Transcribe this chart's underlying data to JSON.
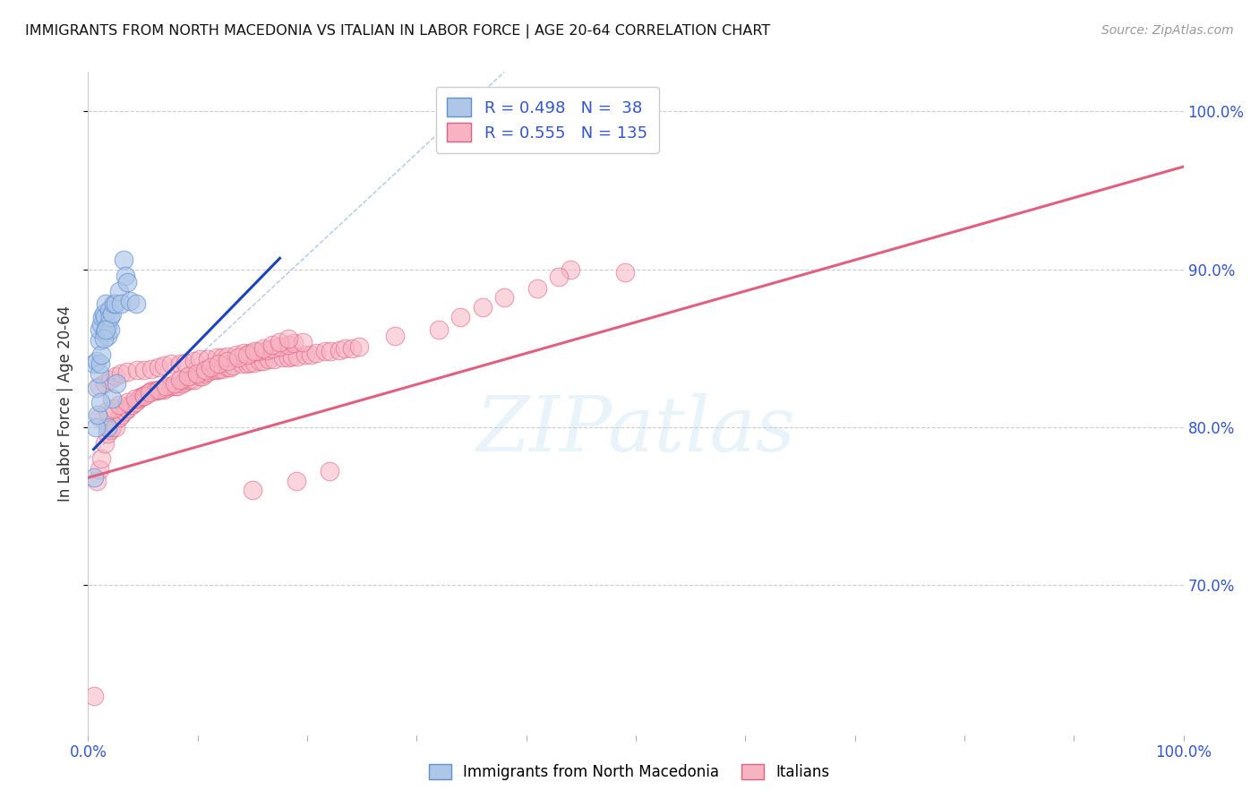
{
  "title": "IMMIGRANTS FROM NORTH MACEDONIA VS ITALIAN IN LABOR FORCE | AGE 20-64 CORRELATION CHART",
  "source": "Source: ZipAtlas.com",
  "ylabel": "In Labor Force | Age 20-64",
  "xlim": [
    0.0,
    1.0
  ],
  "ylim": [
    0.605,
    1.025
  ],
  "yticks_right": [
    0.7,
    0.8,
    0.9,
    1.0
  ],
  "yticklabels_right": [
    "70.0%",
    "80.0%",
    "90.0%",
    "100.0%"
  ],
  "blue_R": 0.498,
  "blue_N": 38,
  "pink_R": 0.555,
  "pink_N": 135,
  "blue_color": "#aec6e8",
  "pink_color": "#f7b3c2",
  "blue_edge_color": "#6090d0",
  "pink_edge_color": "#e06080",
  "blue_line_color": "#1a44bb",
  "pink_line_color": "#e06080",
  "ref_line_color": "#99bbdd",
  "legend_blue_label": "Immigrants from North Macedonia",
  "legend_pink_label": "Italians",
  "watermark": "ZIPatlas",
  "tick_label_color": "#3355cc",
  "background_color": "#ffffff",
  "grid_color": "#cccccc",
  "blue_line_x0": 0.005,
  "blue_line_y0": 0.786,
  "blue_line_x1": 0.175,
  "blue_line_y1": 0.907,
  "pink_line_x0": 0.0,
  "pink_line_y0": 0.768,
  "pink_line_x1": 1.0,
  "pink_line_y1": 0.965,
  "ref_line_x0": 0.0,
  "ref_line_y0": 0.78,
  "ref_line_x1": 0.38,
  "ref_line_y1": 1.025,
  "blue_x": [
    0.005,
    0.008,
    0.01,
    0.01,
    0.012,
    0.013,
    0.014,
    0.015,
    0.015,
    0.016,
    0.018,
    0.018,
    0.019,
    0.02,
    0.02,
    0.022,
    0.023,
    0.025,
    0.028,
    0.03,
    0.032,
    0.034,
    0.036,
    0.038,
    0.008,
    0.01,
    0.011,
    0.012,
    0.014,
    0.016,
    0.018,
    0.022,
    0.026,
    0.044,
    0.005,
    0.007,
    0.009,
    0.011
  ],
  "blue_y": [
    0.84,
    0.842,
    0.855,
    0.862,
    0.865,
    0.87,
    0.872,
    0.86,
    0.87,
    0.878,
    0.858,
    0.864,
    0.874,
    0.862,
    0.87,
    0.872,
    0.878,
    0.878,
    0.886,
    0.878,
    0.906,
    0.896,
    0.892,
    0.88,
    0.825,
    0.834,
    0.84,
    0.846,
    0.856,
    0.862,
    0.8,
    0.818,
    0.828,
    0.878,
    0.768,
    0.8,
    0.808,
    0.816
  ],
  "pink_x": [
    0.005,
    0.008,
    0.01,
    0.012,
    0.015,
    0.018,
    0.02,
    0.022,
    0.025,
    0.028,
    0.03,
    0.033,
    0.036,
    0.038,
    0.04,
    0.043,
    0.046,
    0.048,
    0.05,
    0.053,
    0.056,
    0.058,
    0.061,
    0.063,
    0.066,
    0.069,
    0.071,
    0.076,
    0.079,
    0.081,
    0.086,
    0.089,
    0.091,
    0.094,
    0.097,
    0.102,
    0.104,
    0.107,
    0.109,
    0.114,
    0.117,
    0.119,
    0.122,
    0.127,
    0.13,
    0.132,
    0.14,
    0.145,
    0.148,
    0.152,
    0.157,
    0.16,
    0.165,
    0.17,
    0.178,
    0.183,
    0.186,
    0.191,
    0.198,
    0.203,
    0.208,
    0.216,
    0.221,
    0.229,
    0.234,
    0.241,
    0.247,
    0.01,
    0.015,
    0.02,
    0.025,
    0.03,
    0.036,
    0.045,
    0.051,
    0.058,
    0.064,
    0.069,
    0.076,
    0.084,
    0.089,
    0.097,
    0.102,
    0.109,
    0.117,
    0.122,
    0.127,
    0.135,
    0.142,
    0.148,
    0.155,
    0.163,
    0.168,
    0.175,
    0.183,
    0.188,
    0.196,
    0.01,
    0.018,
    0.023,
    0.028,
    0.036,
    0.043,
    0.051,
    0.056,
    0.064,
    0.071,
    0.079,
    0.084,
    0.091,
    0.099,
    0.107,
    0.112,
    0.119,
    0.127,
    0.137,
    0.145,
    0.152,
    0.16,
    0.168,
    0.175,
    0.183,
    0.34,
    0.44,
    0.38,
    0.49,
    0.28,
    0.36,
    0.43,
    0.32,
    0.41,
    0.15,
    0.19,
    0.22
  ],
  "pink_y": [
    0.63,
    0.766,
    0.773,
    0.78,
    0.79,
    0.796,
    0.798,
    0.8,
    0.8,
    0.806,
    0.808,
    0.81,
    0.812,
    0.814,
    0.814,
    0.816,
    0.818,
    0.819,
    0.82,
    0.821,
    0.822,
    0.823,
    0.823,
    0.823,
    0.824,
    0.824,
    0.825,
    0.826,
    0.826,
    0.826,
    0.828,
    0.829,
    0.83,
    0.83,
    0.83,
    0.832,
    0.832,
    0.834,
    0.835,
    0.836,
    0.836,
    0.837,
    0.837,
    0.838,
    0.838,
    0.839,
    0.84,
    0.84,
    0.841,
    0.841,
    0.842,
    0.842,
    0.843,
    0.843,
    0.844,
    0.844,
    0.845,
    0.845,
    0.846,
    0.846,
    0.847,
    0.848,
    0.848,
    0.849,
    0.85,
    0.85,
    0.851,
    0.826,
    0.828,
    0.83,
    0.832,
    0.834,
    0.835,
    0.836,
    0.836,
    0.837,
    0.838,
    0.839,
    0.84,
    0.84,
    0.841,
    0.842,
    0.843,
    0.843,
    0.844,
    0.844,
    0.845,
    0.846,
    0.847,
    0.847,
    0.848,
    0.849,
    0.85,
    0.851,
    0.852,
    0.853,
    0.854,
    0.806,
    0.81,
    0.812,
    0.814,
    0.816,
    0.818,
    0.82,
    0.822,
    0.824,
    0.826,
    0.828,
    0.83,
    0.832,
    0.834,
    0.836,
    0.838,
    0.84,
    0.842,
    0.844,
    0.846,
    0.848,
    0.85,
    0.852,
    0.854,
    0.856,
    0.87,
    0.9,
    0.882,
    0.898,
    0.858,
    0.876,
    0.895,
    0.862,
    0.888,
    0.76,
    0.766,
    0.772
  ],
  "figsize": [
    14.06,
    8.92
  ],
  "dpi": 100
}
